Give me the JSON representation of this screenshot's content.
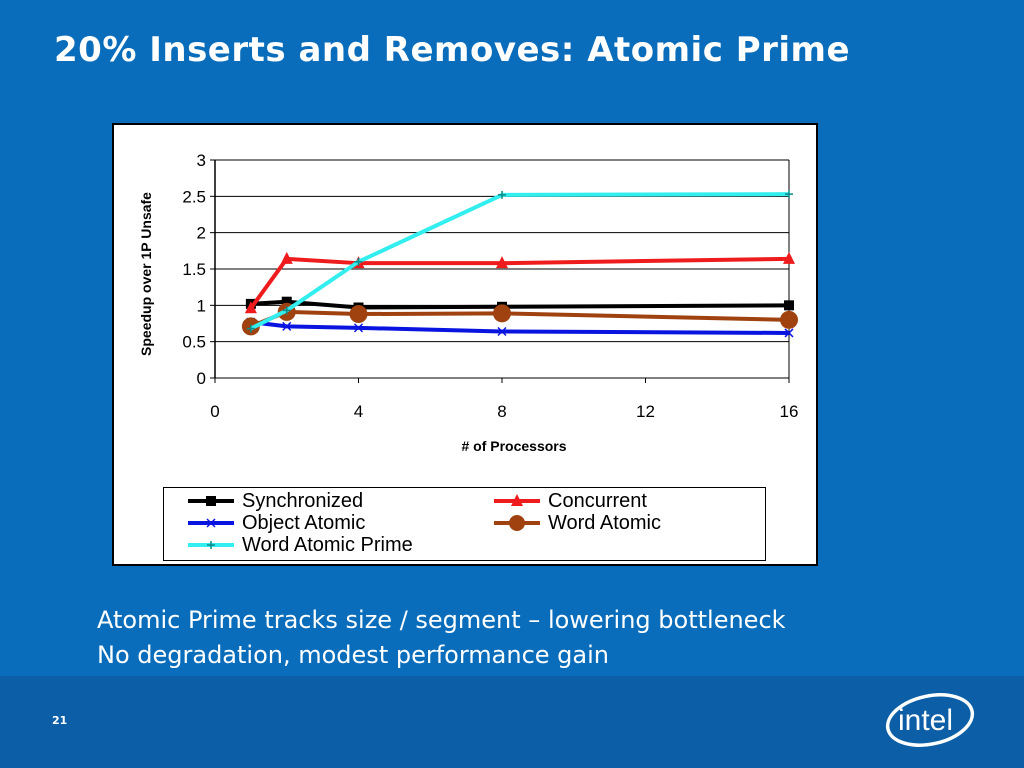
{
  "slide": {
    "title": "20% Inserts and Removes: Atomic Prime",
    "bullets": [
      "Atomic Prime tracks size / segment – lowering bottleneck",
      "No degradation, modest performance gain"
    ],
    "page_number": "21",
    "logo_text": "intel"
  },
  "colors": {
    "background": "#0a6dbb",
    "footer": "#0c5fa6",
    "Synchronized": "#000000",
    "Concurrent": "#ee1c1c",
    "Object Atomic": "#0a14e0",
    "Word Atomic": "#a0420f",
    "Word Atomic Prime": "#33eeee"
  },
  "chart_data": {
    "type": "line",
    "xlabel": "# of Processors",
    "ylabel": "Speedup over 1P Unsafe",
    "xlim": [
      0,
      16
    ],
    "ylim": [
      0,
      3
    ],
    "xticks": [
      "0",
      "4",
      "8",
      "12",
      "16"
    ],
    "yticks": [
      "0",
      "0.5",
      "1",
      "1.5",
      "2",
      "2.5",
      "3"
    ],
    "grid": "horizontal",
    "legend_position": "bottom",
    "x": [
      1,
      2,
      4,
      8,
      16
    ],
    "series": [
      {
        "name": "Synchronized",
        "marker": "square",
        "values": [
          1.02,
          1.05,
          0.97,
          0.98,
          1.0
        ]
      },
      {
        "name": "Concurrent",
        "marker": "triangle",
        "values": [
          0.96,
          1.64,
          1.58,
          1.58,
          1.64
        ]
      },
      {
        "name": "Object Atomic",
        "marker": "x",
        "values": [
          0.77,
          0.71,
          0.69,
          0.64,
          0.62
        ]
      },
      {
        "name": "Word Atomic",
        "marker": "circle",
        "values": [
          0.71,
          0.91,
          0.88,
          0.89,
          0.8
        ]
      },
      {
        "name": "Word Atomic Prime",
        "marker": "plus",
        "values": [
          0.68,
          0.93,
          1.6,
          2.52,
          2.53
        ]
      }
    ]
  }
}
